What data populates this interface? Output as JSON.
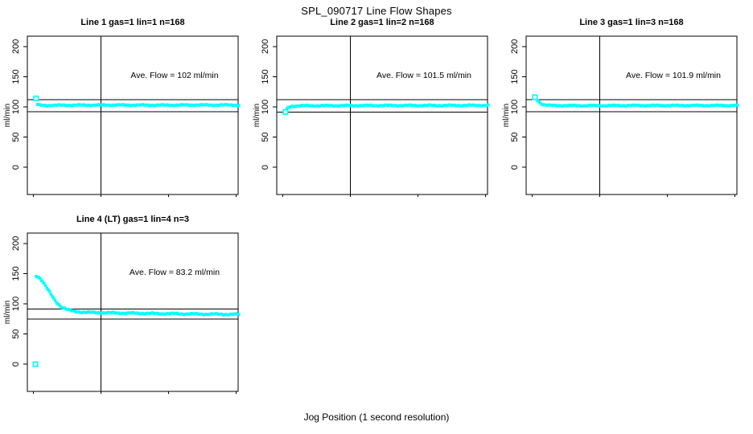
{
  "title": "SPL_090717  Line Flow Shapes",
  "xlabel": "Jog Position (1 second resolution)",
  "marker_color": "#00ffff",
  "line_color": "#000000",
  "chart_data": [
    {
      "type": "scatter",
      "title": "Line 1 gas=1 lin=1 n=168",
      "ylabel": "ml/min",
      "annotation": "Ave. Flow =  102  ml/min",
      "ave_flow": 102,
      "n": 168,
      "gas": 1,
      "lin": 1,
      "ref_lines": [
        112.2,
        91.8
      ],
      "vline_x": 50,
      "xticks": [
        0,
        50,
        100,
        150
      ],
      "yticks": [
        0,
        50,
        100,
        150,
        200
      ],
      "xlim": [
        -4.5,
        151.5
      ],
      "ylim": [
        -45,
        217
      ],
      "marker_color": "#00ffff",
      "jitter": 1.1,
      "anchors": [
        [
          3,
          104
        ],
        [
          4,
          103
        ],
        [
          6,
          102.5
        ],
        [
          10,
          102.5
        ],
        [
          30,
          102.8
        ],
        [
          60,
          103
        ],
        [
          90,
          102.8
        ],
        [
          120,
          103
        ],
        [
          152,
          103
        ]
      ],
      "outliers": [
        [
          2,
          114
        ]
      ]
    },
    {
      "type": "scatter",
      "title": "Line 2 gas=1 lin=2 n=168",
      "ylabel": "ml/min",
      "annotation": "Ave. Flow =  101.5  ml/min",
      "ave_flow": 101.5,
      "n": 168,
      "gas": 1,
      "lin": 2,
      "ref_lines": [
        111.65,
        91.35
      ],
      "vline_x": 50,
      "xticks": [
        0,
        50,
        100,
        150
      ],
      "yticks": [
        0,
        50,
        100,
        150,
        200
      ],
      "xlim": [
        -4.5,
        151.5
      ],
      "ylim": [
        -45,
        217
      ],
      "marker_color": "#00ffff",
      "jitter": 1.1,
      "anchors": [
        [
          3,
          96
        ],
        [
          4,
          98.5
        ],
        [
          5,
          100
        ],
        [
          7,
          101
        ],
        [
          12,
          101.8
        ],
        [
          40,
          102
        ],
        [
          80,
          102.3
        ],
        [
          120,
          102.3
        ],
        [
          152,
          102.5
        ]
      ],
      "outliers": [
        [
          2,
          91.5
        ]
      ]
    },
    {
      "type": "scatter",
      "title": "Line 3 gas=1 lin=3 n=168",
      "ylabel": "ml/min",
      "annotation": "Ave. Flow =  101.9  ml/min",
      "ave_flow": 101.9,
      "n": 168,
      "gas": 1,
      "lin": 3,
      "ref_lines": [
        112.1,
        91.7
      ],
      "vline_x": 50,
      "xticks": [
        0,
        50,
        100,
        150
      ],
      "yticks": [
        0,
        50,
        100,
        150,
        200
      ],
      "xlim": [
        -4.5,
        151.5
      ],
      "ylim": [
        -45,
        217
      ],
      "marker_color": "#00ffff",
      "jitter": 1.0,
      "anchors": [
        [
          2,
          115
        ],
        [
          3,
          113.5
        ],
        [
          4,
          111
        ],
        [
          5,
          108.5
        ],
        [
          6,
          106.5
        ],
        [
          7,
          105
        ],
        [
          8,
          104
        ],
        [
          10,
          103
        ],
        [
          14,
          102.3
        ],
        [
          40,
          102
        ],
        [
          80,
          102.3
        ],
        [
          120,
          102.3
        ],
        [
          152,
          102.3
        ]
      ],
      "outliers": [
        [
          2,
          116
        ]
      ]
    },
    {
      "type": "scatter",
      "title": "Line 4 (LT) gas=1 lin=4 n=3",
      "ylabel": "ml/min",
      "annotation": "Ave. Flow =  83.2  ml/min",
      "ave_flow": 83.2,
      "n": 3,
      "gas": 1,
      "lin": 4,
      "ref_lines": [
        91.5,
        74.9
      ],
      "vline_x": 50,
      "xticks": [
        0,
        50,
        100,
        150
      ],
      "yticks": [
        0,
        50,
        100,
        150,
        200
      ],
      "xlim": [
        -4.5,
        151.5
      ],
      "ylim": [
        -45,
        217
      ],
      "marker_color": "#00ffff",
      "jitter": 1.4,
      "anchors": [
        [
          2,
          146
        ],
        [
          3,
          145.5
        ],
        [
          4,
          144
        ],
        [
          5,
          142
        ],
        [
          6,
          139.5
        ],
        [
          7,
          136.5
        ],
        [
          8,
          133
        ],
        [
          9,
          129.5
        ],
        [
          10,
          126
        ],
        [
          11,
          122.5
        ],
        [
          12,
          119
        ],
        [
          13,
          115.5
        ],
        [
          14,
          112
        ],
        [
          15,
          108.5
        ],
        [
          16,
          105.5
        ],
        [
          17,
          103
        ],
        [
          18,
          100.5
        ],
        [
          19,
          98.5
        ],
        [
          20,
          96.5
        ],
        [
          21,
          95
        ],
        [
          22,
          93.5
        ],
        [
          23,
          92.5
        ],
        [
          24,
          91.5
        ],
        [
          25,
          90.5
        ],
        [
          26,
          89.8
        ],
        [
          28,
          88.5
        ],
        [
          30,
          87.5
        ],
        [
          33,
          86.8
        ],
        [
          36,
          86.2
        ],
        [
          40,
          85.8
        ],
        [
          45,
          85.4
        ],
        [
          50,
          85.2
        ],
        [
          60,
          84.8
        ],
        [
          70,
          84.4
        ],
        [
          80,
          84.2
        ],
        [
          90,
          83.8
        ],
        [
          100,
          83.6
        ],
        [
          110,
          83.3
        ],
        [
          120,
          83
        ],
        [
          130,
          82.8
        ],
        [
          140,
          82.6
        ],
        [
          152,
          82.4
        ]
      ],
      "outliers": [
        [
          1.5,
          0
        ]
      ]
    }
  ]
}
